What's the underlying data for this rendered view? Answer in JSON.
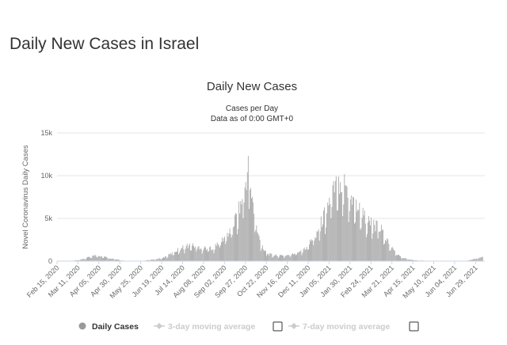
{
  "page": {
    "heading": "Daily New Cases in Israel"
  },
  "chart_data": {
    "type": "bar",
    "title": "Daily New Cases",
    "subtitle_lines": [
      "Cases per Day",
      "Data as of 0:00 GMT+0"
    ],
    "ylabel": "Novel Coronavirus Daily Cases",
    "xlabel": "",
    "ylim": [
      0,
      15000
    ],
    "y_ticks": [
      0,
      5000,
      10000,
      15000
    ],
    "y_tick_labels": [
      "0",
      "5k",
      "10k",
      "15k"
    ],
    "x_range": [
      "2020-02-15",
      "2021-07-10"
    ],
    "x_ticks": [
      {
        "date": "2020-02-15",
        "label": "Feb 15, 2020"
      },
      {
        "date": "2020-03-11",
        "label": "Mar 11, 2020"
      },
      {
        "date": "2020-04-05",
        "label": "Apr 05, 2020"
      },
      {
        "date": "2020-04-30",
        "label": "Apr 30, 2020"
      },
      {
        "date": "2020-05-25",
        "label": "May 25, 2020"
      },
      {
        "date": "2020-06-19",
        "label": "Jun 19, 2020"
      },
      {
        "date": "2020-07-14",
        "label": "Jul 14, 2020"
      },
      {
        "date": "2020-08-08",
        "label": "Aug 08, 2020"
      },
      {
        "date": "2020-09-02",
        "label": "Sep 02, 2020"
      },
      {
        "date": "2020-09-27",
        "label": "Sep 27, 2020"
      },
      {
        "date": "2020-10-22",
        "label": "Oct 22, 2020"
      },
      {
        "date": "2020-11-16",
        "label": "Nov 16, 2020"
      },
      {
        "date": "2020-12-11",
        "label": "Dec 11, 2020"
      },
      {
        "date": "2021-01-05",
        "label": "Jan 05, 2021"
      },
      {
        "date": "2021-01-30",
        "label": "Jan 30, 2021"
      },
      {
        "date": "2021-02-24",
        "label": "Feb 24, 2021"
      },
      {
        "date": "2021-03-21",
        "label": "Mar 21, 2021"
      },
      {
        "date": "2021-04-15",
        "label": "Apr 15, 2021"
      },
      {
        "date": "2021-05-10",
        "label": "May 10, 2021"
      },
      {
        "date": "2021-06-04",
        "label": "Jun 04, 2021"
      },
      {
        "date": "2021-06-29",
        "label": "Jun 29, 2021"
      }
    ],
    "grid": true,
    "legend_position": "bottom",
    "series": [
      {
        "name": "Daily Cases",
        "color": "#999999",
        "points": [
          [
            "2020-03-05",
            60
          ],
          [
            "2020-03-12",
            120
          ],
          [
            "2020-03-19",
            300
          ],
          [
            "2020-03-26",
            550
          ],
          [
            "2020-04-02",
            720
          ],
          [
            "2020-04-09",
            560
          ],
          [
            "2020-04-16",
            400
          ],
          [
            "2020-04-23",
            240
          ],
          [
            "2020-04-30",
            110
          ],
          [
            "2020-05-07",
            40
          ],
          [
            "2020-05-14",
            20
          ],
          [
            "2020-05-21",
            15
          ],
          [
            "2020-05-28",
            40
          ],
          [
            "2020-06-04",
            130
          ],
          [
            "2020-06-11",
            210
          ],
          [
            "2020-06-18",
            320
          ],
          [
            "2020-06-25",
            600
          ],
          [
            "2020-07-02",
            1000
          ],
          [
            "2020-07-09",
            1400
          ],
          [
            "2020-07-16",
            1700
          ],
          [
            "2020-07-23",
            1900
          ],
          [
            "2020-07-30",
            1700
          ],
          [
            "2020-08-06",
            1600
          ],
          [
            "2020-08-13",
            1500
          ],
          [
            "2020-08-20",
            1600
          ],
          [
            "2020-08-27",
            2200
          ],
          [
            "2020-09-03",
            2900
          ],
          [
            "2020-09-10",
            3800
          ],
          [
            "2020-09-17",
            5600
          ],
          [
            "2020-09-24",
            7500
          ],
          [
            "2020-09-30",
            11000
          ],
          [
            "2020-10-04",
            8000
          ],
          [
            "2020-10-08",
            5000
          ],
          [
            "2020-10-12",
            3000
          ],
          [
            "2020-10-18",
            1500
          ],
          [
            "2020-10-25",
            800
          ],
          [
            "2020-11-01",
            700
          ],
          [
            "2020-11-08",
            650
          ],
          [
            "2020-11-15",
            700
          ],
          [
            "2020-11-22",
            800
          ],
          [
            "2020-11-29",
            1100
          ],
          [
            "2020-12-06",
            1500
          ],
          [
            "2020-12-13",
            2200
          ],
          [
            "2020-12-20",
            3200
          ],
          [
            "2020-12-27",
            4700
          ],
          [
            "2021-01-03",
            6500
          ],
          [
            "2021-01-10",
            8200
          ],
          [
            "2021-01-17",
            9500
          ],
          [
            "2021-01-24",
            9000
          ],
          [
            "2021-01-31",
            7500
          ],
          [
            "2021-02-07",
            6500
          ],
          [
            "2021-02-14",
            5500
          ],
          [
            "2021-02-21",
            4600
          ],
          [
            "2021-02-28",
            4200
          ],
          [
            "2021-03-07",
            3800
          ],
          [
            "2021-03-14",
            2600
          ],
          [
            "2021-03-21",
            1500
          ],
          [
            "2021-03-28",
            700
          ],
          [
            "2021-04-04",
            350
          ],
          [
            "2021-04-11",
            180
          ],
          [
            "2021-04-18",
            110
          ],
          [
            "2021-04-25",
            70
          ],
          [
            "2021-05-02",
            50
          ],
          [
            "2021-05-09",
            30
          ],
          [
            "2021-05-16",
            25
          ],
          [
            "2021-05-23",
            20
          ],
          [
            "2021-05-30",
            15
          ],
          [
            "2021-06-06",
            10
          ],
          [
            "2021-06-13",
            15
          ],
          [
            "2021-06-20",
            80
          ],
          [
            "2021-06-27",
            250
          ],
          [
            "2021-07-04",
            400
          ],
          [
            "2021-07-08",
            450
          ]
        ]
      },
      {
        "name": "3-day moving average",
        "color": "#cccccc",
        "visible": false
      },
      {
        "name": "7-day moving average",
        "color": "#cccccc",
        "visible": false
      }
    ]
  }
}
